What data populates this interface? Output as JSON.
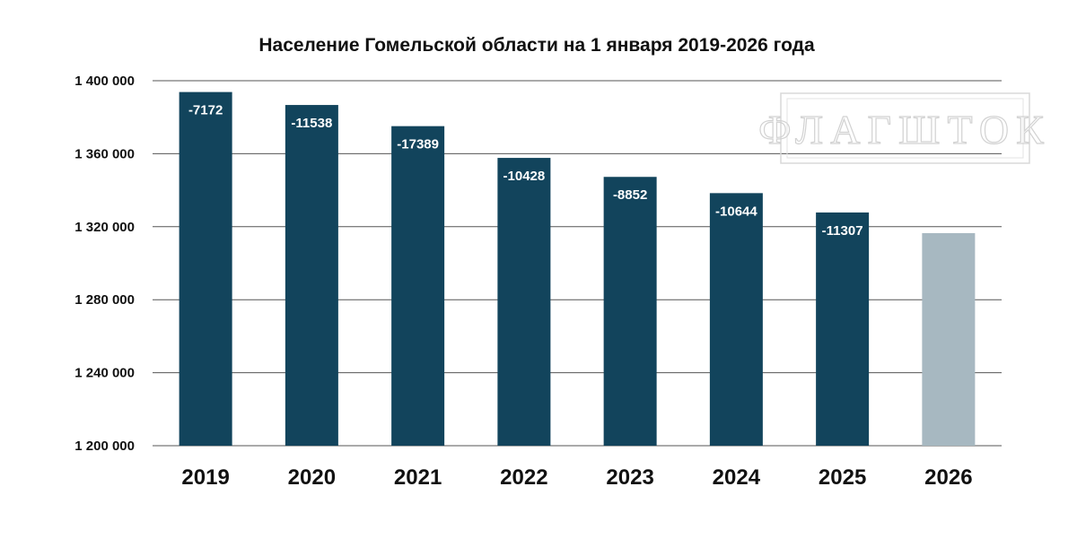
{
  "chart_data": {
    "type": "bar",
    "title": "Население Гомельской области на 1 января 2019-2026 года",
    "xlabel": "",
    "ylabel": "",
    "categories": [
      "2019",
      "2020",
      "2021",
      "2022",
      "2023",
      "2024",
      "2025",
      "2026"
    ],
    "values": [
      1393800,
      1386700,
      1375100,
      1357700,
      1347300,
      1338400,
      1327800,
      1316500
    ],
    "data_labels": [
      "-7172",
      "-11538",
      "-17389",
      "-10428",
      "-8852",
      "-10644",
      "-11307",
      ""
    ],
    "ylim": [
      1200000,
      1400000
    ],
    "yticks": [
      1200000,
      1240000,
      1280000,
      1320000,
      1360000,
      1400000
    ],
    "ytick_labels": [
      "1 200 000",
      "1 240 000",
      "1 280 000",
      "1 320 000",
      "1 360 000",
      "1 400 000"
    ],
    "grid": true,
    "legend": "none",
    "colors": {
      "bar": "#12445c",
      "bar_highlight": "#a7b8c1",
      "grid": "#555555"
    },
    "highlight_index": 7
  },
  "watermark": {
    "text": "ФЛАГШТОК"
  }
}
